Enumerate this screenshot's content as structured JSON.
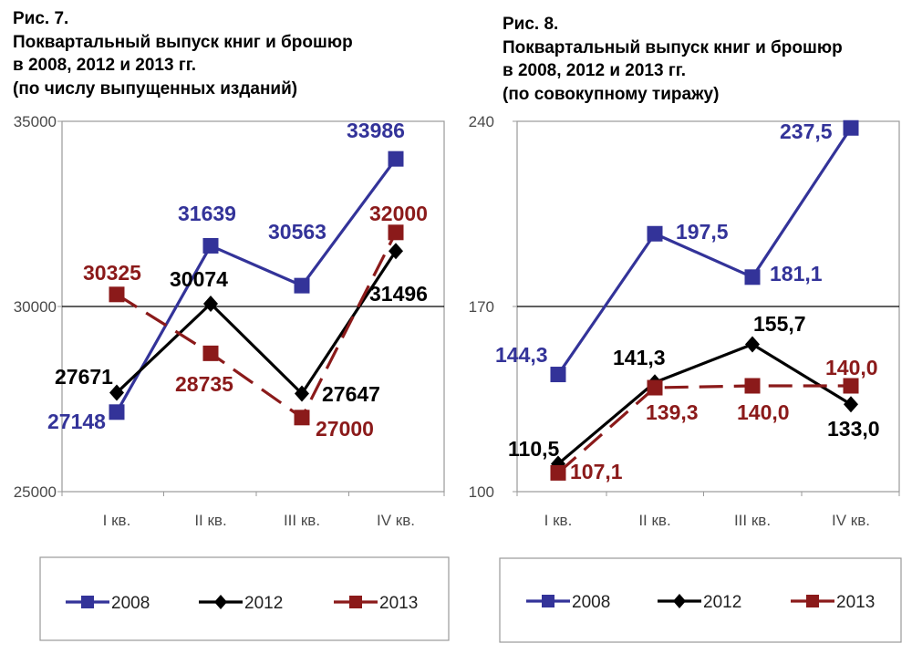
{
  "chart_data": [
    {
      "type": "line",
      "title_lines": [
        "Рис. 7.",
        "Поквартальный выпуск книг и брошюр",
        "в 2008, 2012 и 2013 гг.",
        "(по числу выпущенных изданий)"
      ],
      "categories": [
        "I кв.",
        "II кв.",
        "III кв.",
        "IV кв."
      ],
      "ylim": [
        25000,
        35000
      ],
      "yticks": [
        "25000",
        "30000",
        "35000"
      ],
      "reference_line": 30000,
      "grid": false,
      "legend_position": "bottom",
      "series": [
        {
          "name": "2008",
          "values": [
            27148,
            31639,
            30563,
            33986
          ],
          "labels": [
            "27148",
            "31639",
            "30563",
            "33986"
          ],
          "color": "#333399",
          "marker": "square",
          "dash": "solid"
        },
        {
          "name": "2012",
          "values": [
            27671,
            30074,
            27647,
            31496
          ],
          "labels": [
            "27671",
            "30074",
            "27647",
            "31496"
          ],
          "color": "#000000",
          "marker": "diamond",
          "dash": "solid"
        },
        {
          "name": "2013",
          "values": [
            30325,
            28735,
            27000,
            32000
          ],
          "labels": [
            "30325",
            "28735",
            "27000",
            "32000"
          ],
          "color": "#8b1a1a",
          "marker": "square",
          "dash": "dashed"
        }
      ]
    },
    {
      "type": "line",
      "title_lines": [
        "Рис. 8.",
        "Поквартальный выпуск книг и брошюр",
        "в 2008, 2012 и 2013 гг.",
        "(по совокупному тиражу)"
      ],
      "categories": [
        "I кв.",
        "II кв.",
        "III кв.",
        "IV кв."
      ],
      "ylim": [
        100,
        240
      ],
      "yticks": [
        "100",
        "170",
        "240"
      ],
      "reference_line": 170,
      "grid": false,
      "legend_position": "bottom",
      "series": [
        {
          "name": "2008",
          "values": [
            144.3,
            197.5,
            181.1,
            237.5
          ],
          "labels": [
            "144,3",
            "197,5",
            "181,1",
            "237,5"
          ],
          "color": "#333399",
          "marker": "square",
          "dash": "solid"
        },
        {
          "name": "2012",
          "values": [
            110.5,
            141.3,
            155.7,
            133.0
          ],
          "labels": [
            "110,5",
            "141,3",
            "155,7",
            "133,0"
          ],
          "color": "#000000",
          "marker": "diamond",
          "dash": "solid"
        },
        {
          "name": "2013",
          "values": [
            107.1,
            139.3,
            140.0,
            140.0
          ],
          "labels": [
            "107,1",
            "139,3",
            "140,0",
            "140,0"
          ],
          "color": "#8b1a1a",
          "marker": "square",
          "dash": "dashed"
        }
      ]
    }
  ]
}
